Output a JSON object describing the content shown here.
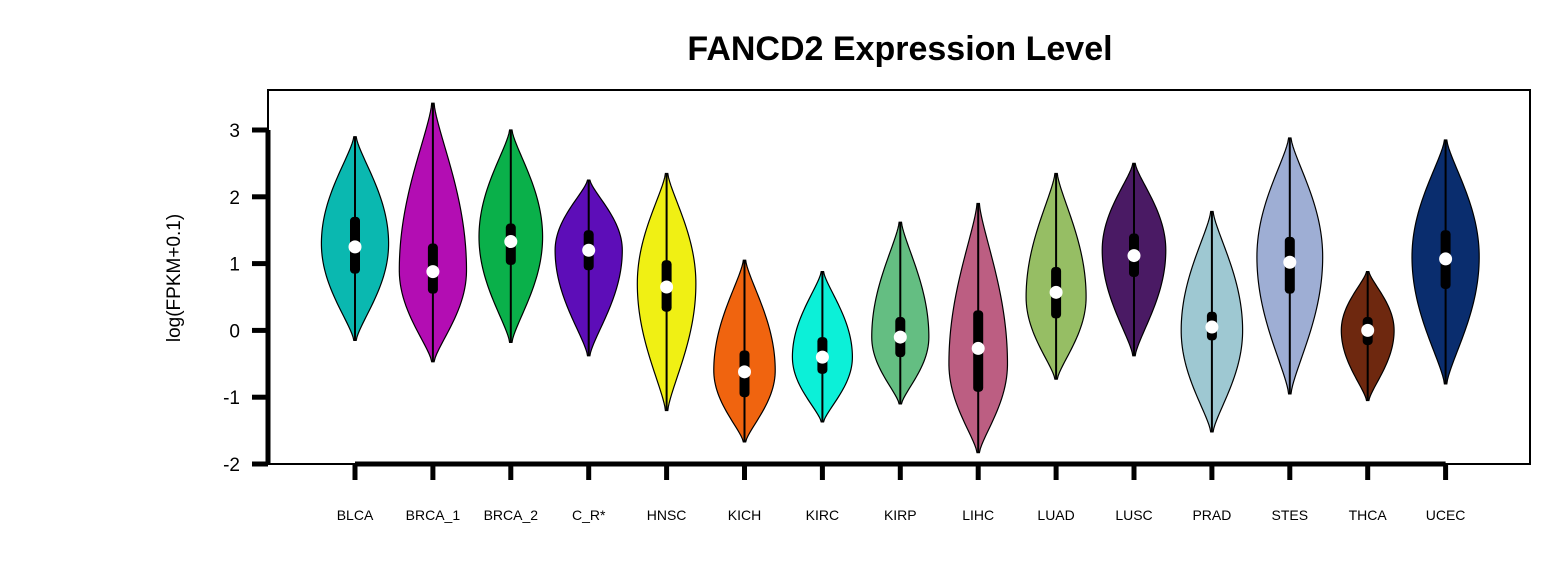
{
  "chart_data": {
    "type": "violin",
    "title": "FANCD2 Expression Level",
    "xlabel": "",
    "ylabel": "log(FPKM+0.1)",
    "ylim": [
      -2,
      3.5
    ],
    "yticks": [
      3,
      2,
      1,
      0,
      -1,
      -2
    ],
    "ytick_labels": [
      "3",
      "2",
      "1",
      "0",
      "-1",
      "-2"
    ],
    "grid": false,
    "legend": "none",
    "categories": [
      "BLCA",
      "BRCA_1",
      "BRCA_2",
      "C_R*",
      "HNSC",
      "KICH",
      "KIRC",
      "KIRP",
      "LIHC",
      "LUAD",
      "LUSC",
      "PRAD",
      "STES",
      "THCA",
      "UCEC"
    ],
    "series": [
      {
        "category": "BLCA",
        "color": "#0ab8b0",
        "min": -0.15,
        "q1": 0.85,
        "median": 1.25,
        "q3": 1.7,
        "max": 2.9,
        "peak": 1.3,
        "width": 0.9
      },
      {
        "category": "BRCA_1",
        "color": "#b30db3",
        "min": -0.47,
        "q1": 0.55,
        "median": 0.88,
        "q3": 1.3,
        "max": 3.4,
        "peak": 0.9,
        "width": 0.9
      },
      {
        "category": "BRCA_2",
        "color": "#0ab04a",
        "min": -0.18,
        "q1": 0.98,
        "median": 1.33,
        "q3": 1.6,
        "max": 3.0,
        "peak": 1.4,
        "width": 0.85
      },
      {
        "category": "C_R*",
        "color": "#5d0db8",
        "min": -0.38,
        "q1": 0.9,
        "median": 1.2,
        "q3": 1.5,
        "max": 2.25,
        "peak": 1.2,
        "width": 0.9
      },
      {
        "category": "HNSC",
        "color": "#f0f014",
        "min": -1.2,
        "q1": 0.28,
        "median": 0.65,
        "q3": 1.05,
        "max": 2.35,
        "peak": 0.7,
        "width": 0.78
      },
      {
        "category": "KICH",
        "color": "#f0640f",
        "min": -1.67,
        "q1": -1.0,
        "median": -0.62,
        "q3": -0.3,
        "max": 1.05,
        "peak": -0.6,
        "width": 0.82
      },
      {
        "category": "KIRC",
        "color": "#0cf0d8",
        "min": -1.37,
        "q1": -0.65,
        "median": -0.4,
        "q3": -0.1,
        "max": 0.88,
        "peak": -0.4,
        "width": 0.8
      },
      {
        "category": "KIRP",
        "color": "#64be82",
        "min": -1.1,
        "q1": -0.4,
        "median": -0.1,
        "q3": 0.2,
        "max": 1.62,
        "peak": -0.1,
        "width": 0.76
      },
      {
        "category": "LIHC",
        "color": "#bc5e82",
        "min": -1.83,
        "q1": -0.92,
        "median": -0.27,
        "q3": 0.3,
        "max": 1.9,
        "peak": -0.5,
        "width": 0.78
      },
      {
        "category": "LUAD",
        "color": "#96be64",
        "min": -0.73,
        "q1": 0.18,
        "median": 0.57,
        "q3": 0.95,
        "max": 2.35,
        "peak": 0.5,
        "width": 0.8
      },
      {
        "category": "LUSC",
        "color": "#4a1a64",
        "min": -0.38,
        "q1": 0.8,
        "median": 1.12,
        "q3": 1.45,
        "max": 2.5,
        "peak": 1.2,
        "width": 0.85
      },
      {
        "category": "PRAD",
        "color": "#9ec8d2",
        "min": -1.52,
        "q1": -0.15,
        "median": 0.05,
        "q3": 0.28,
        "max": 1.78,
        "peak": 0.0,
        "width": 0.82
      },
      {
        "category": "STES",
        "color": "#9eaed4",
        "min": -0.95,
        "q1": 0.55,
        "median": 1.02,
        "q3": 1.4,
        "max": 2.88,
        "peak": 1.1,
        "width": 0.88
      },
      {
        "category": "THCA",
        "color": "#6e280f",
        "min": -1.05,
        "q1": -0.22,
        "median": 0.0,
        "q3": 0.2,
        "max": 0.88,
        "peak": 0.0,
        "width": 0.7
      },
      {
        "category": "UCEC",
        "color": "#0a2d6e",
        "min": -0.8,
        "q1": 0.62,
        "median": 1.07,
        "q3": 1.5,
        "max": 2.85,
        "peak": 1.1,
        "width": 0.9
      }
    ]
  }
}
